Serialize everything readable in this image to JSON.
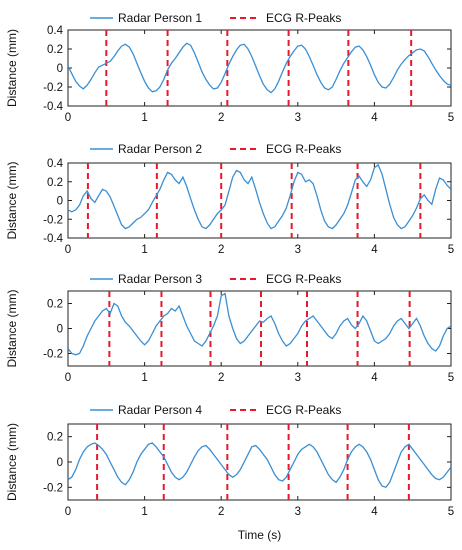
{
  "figure": {
    "xlabel": "Time (s)",
    "colors": {
      "radar": "#3a8fd4",
      "ecg": "#e8192c"
    }
  },
  "chart_data": [
    {
      "type": "line",
      "legend": [
        "Radar Person 1",
        "ECG R-Peaks"
      ],
      "legend_placement": "top",
      "xlabel": "",
      "ylabel": "Distance (mm)",
      "xlim": [
        0,
        5
      ],
      "ylim": [
        -0.4,
        0.4
      ],
      "x_ticks": [
        0,
        1,
        2,
        3,
        4,
        5
      ],
      "y_ticks": [
        -0.4,
        -0.2,
        0,
        0.2,
        0.4
      ],
      "series": [
        {
          "name": "Radar Person 1",
          "x": [
            0.0,
            0.05,
            0.1,
            0.15,
            0.2,
            0.25,
            0.3,
            0.35,
            0.4,
            0.45,
            0.5,
            0.55,
            0.6,
            0.65,
            0.7,
            0.75,
            0.8,
            0.85,
            0.9,
            0.95,
            1.0,
            1.05,
            1.1,
            1.15,
            1.2,
            1.25,
            1.3,
            1.35,
            1.4,
            1.45,
            1.5,
            1.55,
            1.6,
            1.65,
            1.7,
            1.75,
            1.8,
            1.85,
            1.9,
            1.95,
            2.0,
            2.05,
            2.1,
            2.15,
            2.2,
            2.25,
            2.3,
            2.35,
            2.4,
            2.45,
            2.5,
            2.55,
            2.6,
            2.65,
            2.7,
            2.75,
            2.8,
            2.85,
            2.9,
            2.95,
            3.0,
            3.05,
            3.1,
            3.15,
            3.2,
            3.25,
            3.3,
            3.35,
            3.4,
            3.45,
            3.5,
            3.55,
            3.6,
            3.65,
            3.7,
            3.75,
            3.8,
            3.85,
            3.9,
            3.95,
            4.0,
            4.05,
            4.1,
            4.15,
            4.2,
            4.25,
            4.3,
            4.35,
            4.4,
            4.45,
            4.5,
            4.55,
            4.6,
            4.65,
            4.7,
            4.75,
            4.8,
            4.85,
            4.9,
            4.95,
            5.0
          ],
          "y": [
            0.02,
            -0.06,
            -0.14,
            -0.19,
            -0.22,
            -0.18,
            -0.12,
            -0.05,
            0.01,
            0.03,
            0.05,
            0.07,
            0.12,
            0.18,
            0.23,
            0.25,
            0.22,
            0.15,
            0.05,
            -0.05,
            -0.14,
            -0.21,
            -0.25,
            -0.24,
            -0.2,
            -0.12,
            -0.02,
            0.05,
            0.1,
            0.16,
            0.22,
            0.26,
            0.24,
            0.16,
            0.06,
            -0.04,
            -0.12,
            -0.18,
            -0.22,
            -0.21,
            -0.15,
            -0.06,
            0.04,
            0.12,
            0.19,
            0.24,
            0.25,
            0.2,
            0.12,
            0.02,
            -0.08,
            -0.17,
            -0.23,
            -0.26,
            -0.22,
            -0.14,
            -0.04,
            0.05,
            0.12,
            0.18,
            0.23,
            0.24,
            0.2,
            0.12,
            0.03,
            -0.07,
            -0.15,
            -0.21,
            -0.23,
            -0.2,
            -0.12,
            -0.03,
            0.05,
            0.11,
            0.17,
            0.22,
            0.23,
            0.19,
            0.12,
            0.03,
            -0.07,
            -0.15,
            -0.2,
            -0.21,
            -0.17,
            -0.1,
            -0.02,
            0.04,
            0.09,
            0.13,
            0.16,
            0.19,
            0.2,
            0.18,
            0.12,
            0.05,
            -0.02,
            -0.08,
            -0.13,
            -0.17,
            -0.18
          ]
        }
      ],
      "ecg_peaks": [
        0.5,
        1.3,
        2.08,
        2.88,
        3.66,
        4.48
      ]
    },
    {
      "type": "line",
      "legend": [
        "Radar Person 2",
        "ECG R-Peaks"
      ],
      "legend_placement": "top",
      "xlabel": "",
      "ylabel": "Distance (mm)",
      "xlim": [
        0,
        5
      ],
      "ylim": [
        -0.4,
        0.4
      ],
      "x_ticks": [
        0,
        1,
        2,
        3,
        4,
        5
      ],
      "y_ticks": [
        -0.4,
        -0.2,
        0,
        0.2,
        0.4
      ],
      "series": [
        {
          "name": "Radar Person 2",
          "x": [
            0.0,
            0.05,
            0.1,
            0.15,
            0.2,
            0.25,
            0.3,
            0.35,
            0.4,
            0.45,
            0.5,
            0.55,
            0.6,
            0.65,
            0.7,
            0.75,
            0.8,
            0.85,
            0.9,
            0.95,
            1.0,
            1.05,
            1.1,
            1.15,
            1.2,
            1.25,
            1.3,
            1.35,
            1.4,
            1.45,
            1.5,
            1.55,
            1.6,
            1.65,
            1.7,
            1.75,
            1.8,
            1.85,
            1.9,
            1.95,
            2.0,
            2.05,
            2.1,
            2.15,
            2.2,
            2.25,
            2.3,
            2.35,
            2.4,
            2.45,
            2.5,
            2.55,
            2.6,
            2.65,
            2.7,
            2.75,
            2.8,
            2.85,
            2.9,
            2.95,
            3.0,
            3.05,
            3.1,
            3.15,
            3.2,
            3.25,
            3.3,
            3.35,
            3.4,
            3.45,
            3.5,
            3.55,
            3.6,
            3.65,
            3.7,
            3.75,
            3.8,
            3.85,
            3.9,
            3.95,
            4.0,
            4.05,
            4.1,
            4.15,
            4.2,
            4.25,
            4.3,
            4.35,
            4.4,
            4.45,
            4.5,
            4.55,
            4.6,
            4.65,
            4.7,
            4.75,
            4.8,
            4.85,
            4.9,
            4.95,
            5.0
          ],
          "y": [
            -0.1,
            -0.12,
            -0.1,
            -0.05,
            0.05,
            0.1,
            0.02,
            -0.02,
            0.05,
            0.12,
            0.1,
            0.04,
            -0.06,
            -0.16,
            -0.26,
            -0.3,
            -0.28,
            -0.24,
            -0.2,
            -0.18,
            -0.14,
            -0.1,
            -0.02,
            0.05,
            0.12,
            0.22,
            0.3,
            0.28,
            0.22,
            0.18,
            0.25,
            0.15,
            0.02,
            -0.1,
            -0.2,
            -0.28,
            -0.3,
            -0.26,
            -0.2,
            -0.14,
            -0.1,
            -0.05,
            0.1,
            0.25,
            0.32,
            0.3,
            0.22,
            0.18,
            0.25,
            0.12,
            -0.02,
            -0.14,
            -0.24,
            -0.3,
            -0.28,
            -0.22,
            -0.16,
            -0.08,
            0.05,
            0.2,
            0.3,
            0.28,
            0.2,
            0.22,
            0.18,
            0.05,
            -0.1,
            -0.22,
            -0.28,
            -0.3,
            -0.26,
            -0.2,
            -0.14,
            -0.05,
            0.08,
            0.22,
            0.26,
            0.2,
            0.15,
            0.22,
            0.35,
            0.38,
            0.28,
            0.12,
            -0.04,
            -0.18,
            -0.26,
            -0.3,
            -0.28,
            -0.22,
            -0.16,
            -0.08,
            0.02,
            0.06,
            0.0,
            -0.04,
            0.12,
            0.24,
            0.22,
            0.16,
            0.12
          ]
        }
      ],
      "ecg_peaks": [
        0.26,
        1.16,
        2.0,
        2.92,
        3.78,
        4.6
      ]
    },
    {
      "type": "line",
      "legend": [
        "Radar Person 3",
        "ECG R-Peaks"
      ],
      "legend_placement": "top",
      "xlabel": "",
      "ylabel": "Distance (mm)",
      "xlim": [
        0,
        5
      ],
      "ylim": [
        -0.3,
        0.3
      ],
      "x_ticks": [
        0,
        1,
        2,
        3,
        4,
        5
      ],
      "y_ticks": [
        -0.2,
        0,
        0.2
      ],
      "series": [
        {
          "name": "Radar Person 3",
          "x": [
            0.0,
            0.05,
            0.1,
            0.15,
            0.2,
            0.25,
            0.3,
            0.35,
            0.4,
            0.45,
            0.5,
            0.55,
            0.6,
            0.65,
            0.7,
            0.75,
            0.8,
            0.85,
            0.9,
            0.95,
            1.0,
            1.05,
            1.1,
            1.15,
            1.2,
            1.25,
            1.3,
            1.35,
            1.4,
            1.45,
            1.5,
            1.55,
            1.6,
            1.65,
            1.7,
            1.75,
            1.8,
            1.85,
            1.9,
            1.95,
            2.0,
            2.05,
            2.1,
            2.15,
            2.2,
            2.25,
            2.3,
            2.35,
            2.4,
            2.45,
            2.5,
            2.55,
            2.6,
            2.65,
            2.7,
            2.75,
            2.8,
            2.85,
            2.9,
            2.95,
            3.0,
            3.05,
            3.1,
            3.15,
            3.2,
            3.25,
            3.3,
            3.35,
            3.4,
            3.45,
            3.5,
            3.55,
            3.6,
            3.65,
            3.7,
            3.75,
            3.8,
            3.85,
            3.9,
            3.95,
            4.0,
            4.05,
            4.1,
            4.15,
            4.2,
            4.25,
            4.3,
            4.35,
            4.4,
            4.45,
            4.5,
            4.55,
            4.6,
            4.65,
            4.7,
            4.75,
            4.8,
            4.85,
            4.9,
            4.95,
            5.0
          ],
          "y": [
            -0.16,
            -0.2,
            -0.21,
            -0.2,
            -0.14,
            -0.06,
            0.0,
            0.06,
            0.1,
            0.14,
            0.16,
            0.12,
            0.2,
            0.18,
            0.1,
            0.05,
            0.02,
            -0.02,
            -0.06,
            -0.1,
            -0.13,
            -0.1,
            -0.04,
            0.02,
            0.06,
            0.1,
            0.12,
            0.16,
            0.14,
            0.18,
            0.1,
            0.02,
            -0.04,
            -0.1,
            -0.12,
            -0.14,
            -0.1,
            -0.04,
            0.02,
            0.1,
            0.26,
            0.28,
            0.1,
            0.0,
            -0.08,
            -0.12,
            -0.1,
            -0.06,
            -0.02,
            0.02,
            0.06,
            0.05,
            0.08,
            0.1,
            0.04,
            -0.04,
            -0.1,
            -0.14,
            -0.12,
            -0.08,
            -0.04,
            0.02,
            0.06,
            0.08,
            0.1,
            0.06,
            0.02,
            -0.02,
            -0.06,
            -0.08,
            -0.04,
            0.02,
            0.06,
            0.08,
            0.03,
            0.0,
            0.04,
            0.1,
            0.06,
            -0.02,
            -0.1,
            -0.12,
            -0.1,
            -0.08,
            -0.04,
            0.02,
            0.06,
            0.08,
            0.04,
            0.0,
            0.04,
            0.08,
            0.02,
            -0.06,
            -0.12,
            -0.16,
            -0.18,
            -0.14,
            -0.06,
            0.0,
            0.02
          ]
        }
      ],
      "ecg_peaks": [
        0.54,
        1.22,
        1.86,
        2.52,
        3.12,
        3.78,
        4.46
      ]
    },
    {
      "type": "line",
      "legend": [
        "Radar Person 4",
        "ECG R-Peaks"
      ],
      "legend_placement": "top",
      "xlabel": "Time (s)",
      "ylabel": "Distance (mm)",
      "xlim": [
        0,
        5
      ],
      "ylim": [
        -0.3,
        0.3
      ],
      "x_ticks": [
        0,
        1,
        2,
        3,
        4,
        5
      ],
      "y_ticks": [
        -0.2,
        0,
        0.2
      ],
      "series": [
        {
          "name": "Radar Person 4",
          "x": [
            0.0,
            0.05,
            0.1,
            0.15,
            0.2,
            0.25,
            0.3,
            0.35,
            0.4,
            0.45,
            0.5,
            0.55,
            0.6,
            0.65,
            0.7,
            0.75,
            0.8,
            0.85,
            0.9,
            0.95,
            1.0,
            1.05,
            1.1,
            1.15,
            1.2,
            1.25,
            1.3,
            1.35,
            1.4,
            1.45,
            1.5,
            1.55,
            1.6,
            1.65,
            1.7,
            1.75,
            1.8,
            1.85,
            1.9,
            1.95,
            2.0,
            2.05,
            2.1,
            2.15,
            2.2,
            2.25,
            2.3,
            2.35,
            2.4,
            2.45,
            2.5,
            2.55,
            2.6,
            2.65,
            2.7,
            2.75,
            2.8,
            2.85,
            2.9,
            2.95,
            3.0,
            3.05,
            3.1,
            3.15,
            3.2,
            3.25,
            3.3,
            3.35,
            3.4,
            3.45,
            3.5,
            3.55,
            3.6,
            3.65,
            3.7,
            3.75,
            3.8,
            3.85,
            3.9,
            3.95,
            4.0,
            4.05,
            4.1,
            4.15,
            4.2,
            4.25,
            4.3,
            4.35,
            4.4,
            4.45,
            4.5,
            4.55,
            4.6,
            4.65,
            4.7,
            4.75,
            4.8,
            4.85,
            4.9,
            4.95,
            5.0
          ],
          "y": [
            -0.14,
            -0.12,
            -0.06,
            0.02,
            0.08,
            0.12,
            0.14,
            0.15,
            0.13,
            0.1,
            0.06,
            0.0,
            -0.06,
            -0.12,
            -0.16,
            -0.18,
            -0.14,
            -0.08,
            0.0,
            0.06,
            0.1,
            0.14,
            0.15,
            0.12,
            0.08,
            0.04,
            -0.02,
            -0.08,
            -0.12,
            -0.14,
            -0.12,
            -0.08,
            -0.02,
            0.04,
            0.09,
            0.12,
            0.13,
            0.1,
            0.06,
            0.02,
            -0.02,
            -0.06,
            -0.1,
            -0.12,
            -0.1,
            -0.06,
            0.0,
            0.06,
            0.12,
            0.13,
            0.1,
            0.06,
            0.02,
            -0.04,
            -0.1,
            -0.14,
            -0.15,
            -0.12,
            -0.06,
            0.0,
            0.06,
            0.1,
            0.12,
            0.14,
            0.12,
            0.08,
            0.02,
            -0.04,
            -0.1,
            -0.14,
            -0.16,
            -0.12,
            -0.06,
            0.02,
            0.08,
            0.12,
            0.14,
            0.12,
            0.08,
            0.02,
            -0.06,
            -0.14,
            -0.19,
            -0.2,
            -0.16,
            -0.08,
            0.0,
            0.08,
            0.12,
            0.14,
            0.1,
            0.06,
            0.02,
            -0.02,
            -0.06,
            -0.1,
            -0.13,
            -0.14,
            -0.12,
            -0.08,
            -0.04
          ]
        }
      ],
      "ecg_peaks": [
        0.38,
        1.25,
        2.08,
        2.88,
        3.65,
        4.45
      ]
    }
  ]
}
